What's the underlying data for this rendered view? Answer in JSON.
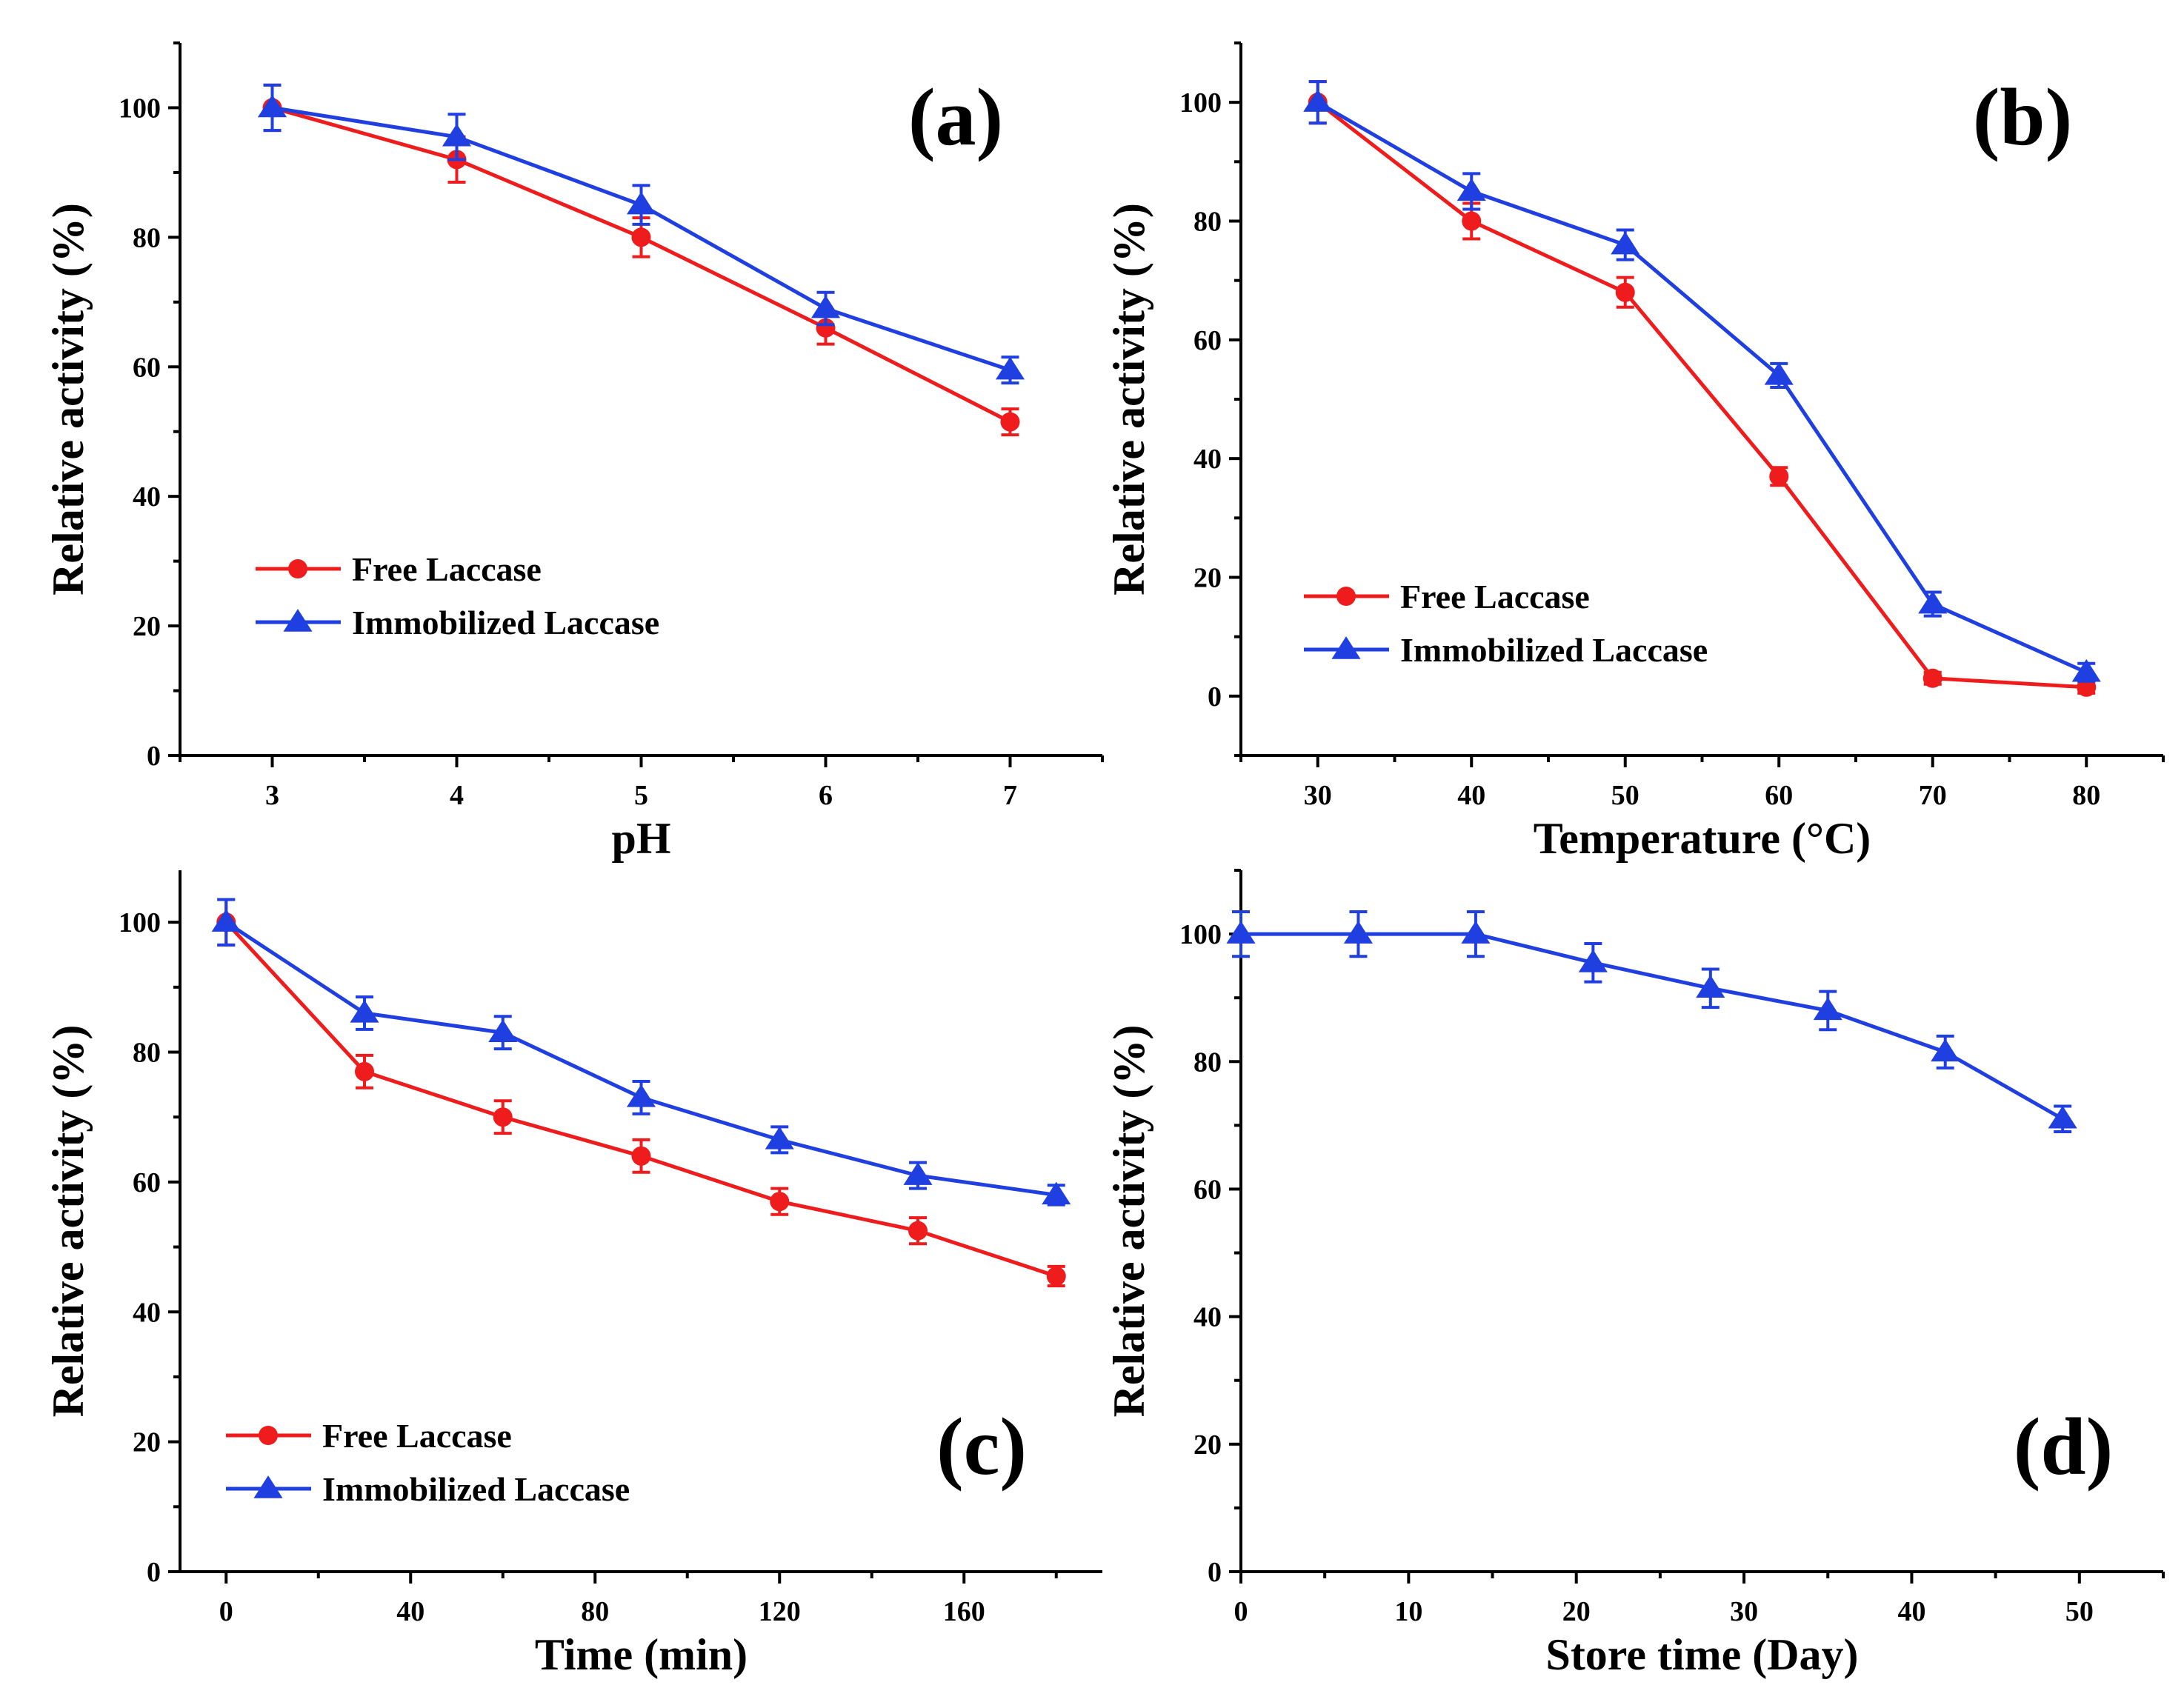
{
  "colors": {
    "free": "#ee1c1c",
    "immobilized": "#1f3fe0",
    "axis": "#000000"
  },
  "chart_data": [
    {
      "id": "a",
      "type": "line",
      "panel_label": "(a)",
      "xlabel": "pH",
      "ylabel": "Relative activity (%)",
      "xlim": [
        2.5,
        7.5
      ],
      "ylim": [
        0,
        110
      ],
      "xticks": [
        3,
        4,
        5,
        6,
        7
      ],
      "xtick_labels": [
        "3",
        "4",
        "5",
        "6",
        "7"
      ],
      "yticks": [
        0,
        20,
        40,
        60,
        80,
        100
      ],
      "ytick_labels": [
        "0",
        "20",
        "40",
        "60",
        "80",
        "100"
      ],
      "legend_position": "lower-left",
      "series": [
        {
          "name": "Free Laccase",
          "marker": "circle",
          "color": "#ee1c1c",
          "x": [
            3,
            4,
            5,
            6,
            7
          ],
          "y": [
            100,
            92,
            80,
            66,
            51.5
          ],
          "err": [
            3.5,
            3.5,
            3,
            2.5,
            2
          ]
        },
        {
          "name": "Immobilized Laccase",
          "marker": "triangle",
          "color": "#1f3fe0",
          "x": [
            3,
            4,
            5,
            6,
            7
          ],
          "y": [
            100,
            95.5,
            85,
            69,
            59.5
          ],
          "err": [
            3.5,
            3.5,
            3,
            2.5,
            2
          ]
        }
      ]
    },
    {
      "id": "b",
      "type": "line",
      "panel_label": "(b)",
      "xlabel": "Temperature (°C)",
      "ylabel": "Relative activity (%)",
      "xlim": [
        25,
        85
      ],
      "ylim": [
        -10,
        110
      ],
      "xticks": [
        30,
        40,
        50,
        60,
        70,
        80
      ],
      "xtick_labels": [
        "30",
        "40",
        "50",
        "60",
        "70",
        "80"
      ],
      "yticks": [
        0,
        20,
        40,
        60,
        80,
        100
      ],
      "ytick_labels": [
        "0",
        "20",
        "40",
        "60",
        "80",
        "100"
      ],
      "legend_position": "lower-left",
      "series": [
        {
          "name": "Free Laccase",
          "marker": "circle",
          "color": "#ee1c1c",
          "x": [
            30,
            40,
            50,
            60,
            70,
            80
          ],
          "y": [
            100,
            80,
            68,
            37,
            3,
            1.5
          ],
          "err": [
            3.5,
            3,
            2.5,
            1.5,
            1,
            1
          ]
        },
        {
          "name": "Immobilized Laccase",
          "marker": "triangle",
          "color": "#1f3fe0",
          "x": [
            30,
            40,
            50,
            60,
            70,
            80
          ],
          "y": [
            100,
            85,
            76,
            54,
            15.5,
            4
          ],
          "err": [
            3.5,
            3,
            2.5,
            2,
            2,
            1.5
          ]
        }
      ]
    },
    {
      "id": "c",
      "type": "line",
      "panel_label": "(c)",
      "xlabel": "Time (min)",
      "ylabel": "Relative activity (%)",
      "xlim": [
        -10,
        190
      ],
      "ylim": [
        0,
        108
      ],
      "xticks": [
        0,
        40,
        80,
        120,
        160
      ],
      "xtick_labels": [
        "0",
        "40",
        "80",
        "120",
        "160"
      ],
      "yticks": [
        0,
        20,
        40,
        60,
        80,
        100
      ],
      "ytick_labels": [
        "0",
        "20",
        "40",
        "60",
        "80",
        "100"
      ],
      "legend_position": "lower-left",
      "series": [
        {
          "name": "Free Laccase",
          "marker": "circle",
          "color": "#ee1c1c",
          "x": [
            0,
            30,
            60,
            90,
            120,
            150,
            180
          ],
          "y": [
            100,
            77,
            70,
            64,
            57,
            52.5,
            45.5
          ],
          "err": [
            3.5,
            2.5,
            2.5,
            2.5,
            2,
            2,
            1.5
          ]
        },
        {
          "name": "Immobilized Laccase",
          "marker": "triangle",
          "color": "#1f3fe0",
          "x": [
            0,
            30,
            60,
            90,
            120,
            150,
            180
          ],
          "y": [
            100,
            86,
            83,
            73,
            66.5,
            61,
            58
          ],
          "err": [
            3.5,
            2.5,
            2.5,
            2.5,
            2,
            2,
            1.5
          ]
        }
      ]
    },
    {
      "id": "d",
      "type": "line",
      "panel_label": "(d)",
      "xlabel": "Store time (Day)",
      "ylabel": "Relative activity (%)",
      "xlim": [
        0,
        55
      ],
      "ylim": [
        0,
        110
      ],
      "xticks": [
        0,
        10,
        20,
        30,
        40,
        50
      ],
      "xtick_labels": [
        "0",
        "10",
        "20",
        "30",
        "40",
        "50"
      ],
      "yticks": [
        0,
        20,
        40,
        60,
        80,
        100
      ],
      "ytick_labels": [
        "0",
        "20",
        "40",
        "60",
        "80",
        "100"
      ],
      "series": [
        {
          "name": "Immobilized Laccase",
          "marker": "triangle",
          "color": "#1f3fe0",
          "x": [
            0,
            7,
            14,
            21,
            28,
            35,
            42,
            49
          ],
          "y": [
            100,
            100,
            100,
            95.5,
            91.5,
            88,
            81.5,
            71
          ],
          "err": [
            3.5,
            3.5,
            3.5,
            3,
            3,
            3,
            2.5,
            2
          ]
        }
      ]
    }
  ]
}
